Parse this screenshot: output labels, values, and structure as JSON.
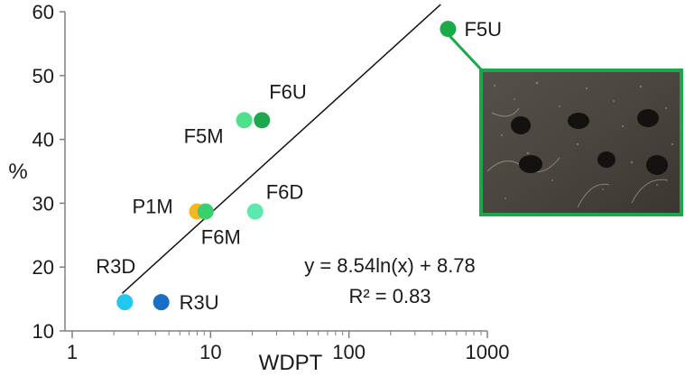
{
  "chart_data": {
    "type": "scatter",
    "title": "",
    "xlabel": "WDPT",
    "ylabel": "%",
    "xscale": "log",
    "xlim": [
      1,
      1000
    ],
    "ylim": [
      10,
      60
    ],
    "x_ticks": [
      "1",
      "10",
      "100",
      "1000"
    ],
    "y_ticks": [
      "10",
      "20",
      "30",
      "40",
      "50",
      "60"
    ],
    "grid": false,
    "points": [
      {
        "label": "R3D",
        "x": 2.4,
        "y": 14.5,
        "color": "#22c8f0"
      },
      {
        "label": "R3U",
        "x": 4.4,
        "y": 14.5,
        "color": "#1a6fc4"
      },
      {
        "label": "P1M",
        "x": 8,
        "y": 28.7,
        "color": "#f5b820"
      },
      {
        "label": "F6M",
        "x": 9.2,
        "y": 28.7,
        "color": "#3ccf6e"
      },
      {
        "label": "F6D",
        "x": 21,
        "y": 28.7,
        "color": "#5ee8b0"
      },
      {
        "label": "F5M",
        "x": 17.5,
        "y": 43,
        "color": "#4fe08a"
      },
      {
        "label": "F6U",
        "x": 23.5,
        "y": 43,
        "color": "#1ea84e"
      },
      {
        "label": "F5U",
        "x": 520,
        "y": 57.3,
        "color": "#1aaa4a"
      }
    ],
    "trendline": {
      "equation": "y = 8.54ln(x) + 8.78",
      "r2_label": "R² = 0.83",
      "a": 8.54,
      "b": 8.78,
      "x_range": [
        2.3,
        460
      ]
    },
    "inset": {
      "description_icon": "soil-aggregate-photo",
      "border_color": "#1aa84a",
      "linked_point": "F5U"
    }
  }
}
